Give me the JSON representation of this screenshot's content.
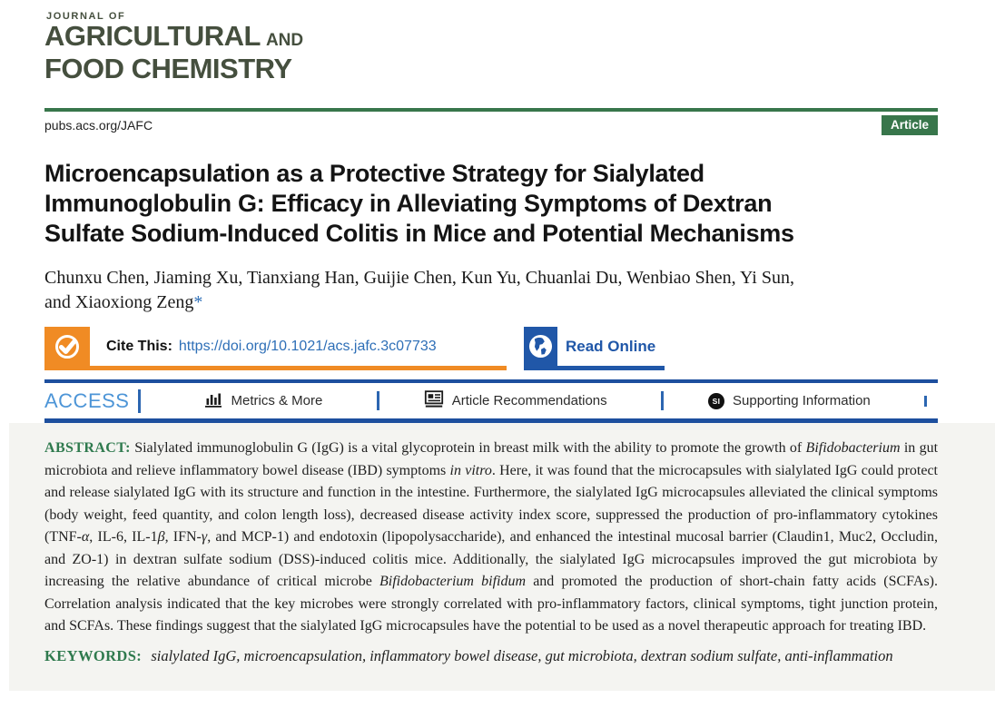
{
  "journal": {
    "kicker": "JOURNAL OF",
    "title_line1": "AGRICULTURAL",
    "title_line1_suffix": "AND",
    "title_line2": "FOOD CHEMISTRY"
  },
  "header": {
    "url": "pubs.acs.org/JAFC",
    "badge": "Article"
  },
  "article": {
    "title_lines": [
      "Microencapsulation as a Protective Strategy for Sialylated",
      "Immunoglobulin G: Efficacy in Alleviating Symptoms of Dextran",
      "Sulfate Sodium-Induced Colitis in Mice and Potential Mechanisms"
    ],
    "authors_line1": "Chunxu Chen, Jiaming Xu, Tianxiang Han, Guijie Chen, Kun Yu, Chuanlai Du, Wenbiao Shen, Yi Sun,",
    "authors_line2": "and Xiaoxiong Zeng",
    "corresponding_marker": "*"
  },
  "cite": {
    "label": "Cite This:",
    "doi": "https://doi.org/10.1021/acs.jafc.3c07733"
  },
  "read_online": {
    "label": "Read Online"
  },
  "access_bar": {
    "access_label": "ACCESS",
    "si_glyph": "SI",
    "items": [
      {
        "label": "Metrics & More",
        "icon": "bar-chart-icon"
      },
      {
        "label": "Article Recommendations",
        "icon": "article-icon"
      },
      {
        "label": "Supporting Information",
        "icon": "si-circle-icon"
      }
    ]
  },
  "abstract": {
    "label": "ABSTRACT:",
    "segments": [
      {
        "t": "Sialylated immunoglobulin G (IgG) is a vital glycoprotein in breast milk with the ability to promote the growth of ",
        "i": false
      },
      {
        "t": "Bifidobacterium",
        "i": true
      },
      {
        "t": " in gut microbiota and relieve inflammatory bowel disease (IBD) symptoms ",
        "i": false
      },
      {
        "t": "in vitro",
        "i": true
      },
      {
        "t": ". Here, it was found that the microcapsules with sialylated IgG could protect and release sialylated IgG with its structure and function in the intestine. Furthermore, the sialylated IgG microcapsules alleviated the clinical symptoms (body weight, feed quantity, and colon length loss), decreased disease activity index score, suppressed the production of pro-inflammatory cytokines (TNF-",
        "i": false
      },
      {
        "t": "α",
        "i": true
      },
      {
        "t": ", IL-6, IL-1",
        "i": false
      },
      {
        "t": "β",
        "i": true
      },
      {
        "t": ", IFN-",
        "i": false
      },
      {
        "t": "γ",
        "i": true
      },
      {
        "t": ", and MCP-1) and endotoxin (lipopolysaccharide), and enhanced the intestinal mucosal barrier (Claudin1, Muc2, Occludin, and ZO-1) in dextran sulfate sodium (DSS)-induced colitis mice. Additionally, the sialylated IgG microcapsules improved the gut microbiota by increasing the relative abundance of critical microbe ",
        "i": false
      },
      {
        "t": "Bifidobacterium bifidum",
        "i": true
      },
      {
        "t": " and promoted the production of short-chain fatty acids (SCFAs). Correlation analysis indicated that the key microbes were strongly correlated with pro-inflammatory factors, clinical symptoms, tight junction protein, and SCFAs. These findings suggest that the sialylated IgG microcapsules have the potential to be used as a novel therapeutic approach for treating IBD.",
        "i": false
      }
    ]
  },
  "keywords": {
    "label": "KEYWORDS:",
    "text": "sialylated IgG, microencapsulation, inflammatory bowel disease, gut microbiota, dextran sodium sulfate, anti-inflammation"
  },
  "colors": {
    "logo_green": "#454f3e",
    "brand_green": "#38764b",
    "accent_orange": "#f08b24",
    "link_blue": "#2e6fb7",
    "button_blue": "#2057a8",
    "access_blue": "#4d95d7",
    "rule_blue": "#1d4f9e",
    "label_green": "#2f7a4e",
    "panel_gray": "#f4f4f1",
    "text_dark": "#1c1c1c"
  }
}
